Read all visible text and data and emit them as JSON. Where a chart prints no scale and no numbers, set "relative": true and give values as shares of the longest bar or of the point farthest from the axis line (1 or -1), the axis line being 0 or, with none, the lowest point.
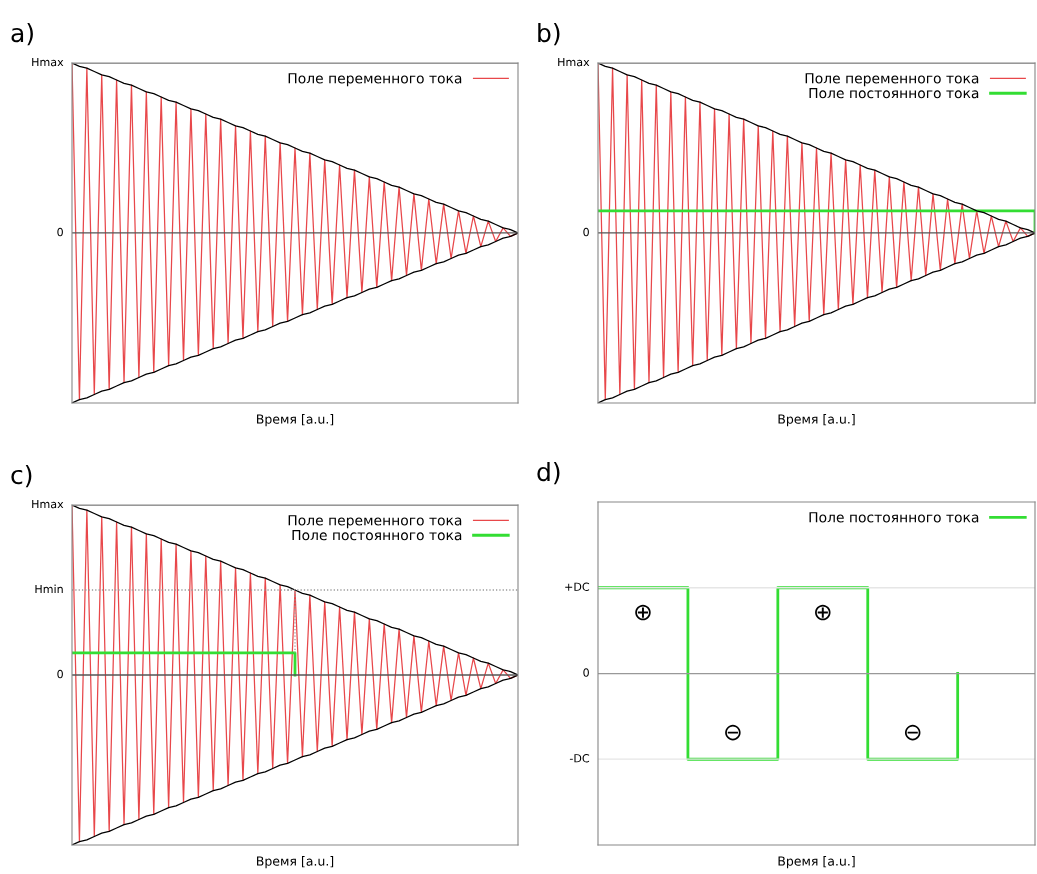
{
  "chart_data": [
    {
      "type": "line",
      "title": "a)",
      "xlabel": "Время [a.u.]",
      "relative": true,
      "legend": "top right",
      "categories": [
        null,
        null,
        null,
        null,
        null,
        null,
        null,
        null,
        null,
        null,
        null,
        null,
        null,
        null,
        null,
        null,
        null,
        null,
        null,
        null,
        null,
        null,
        null,
        null,
        null,
        null,
        null,
        null,
        null,
        null,
        null,
        null,
        null,
        null,
        null,
        null,
        null,
        null,
        null,
        null,
        null,
        null,
        null,
        null,
        null,
        null,
        null,
        null,
        null,
        null,
        null,
        null,
        null,
        null,
        null,
        null,
        null,
        null,
        null,
        null,
        null
      ],
      "ref_lines": [
        {
          "axis": "y",
          "value": 1,
          "label": "Hmax",
          "color": "#888888"
        },
        {
          "axis": "y",
          "value": 0,
          "label": "0",
          "color": "#555555"
        }
      ],
      "series": [
        {
          "name": "Поле переменного тока",
          "color": "#e8474a",
          "values": [
            1.0,
            -0.98,
            0.97,
            -0.95,
            0.93,
            -0.92,
            0.9,
            -0.88,
            0.87,
            -0.85,
            0.83,
            -0.82,
            0.8,
            -0.78,
            0.77,
            -0.75,
            0.73,
            -0.72,
            0.7,
            -0.68,
            0.67,
            -0.65,
            0.63,
            -0.62,
            0.6,
            -0.58,
            0.57,
            -0.55,
            0.53,
            -0.52,
            0.5,
            -0.48,
            0.47,
            -0.45,
            0.43,
            -0.42,
            0.4,
            -0.38,
            0.37,
            -0.35,
            0.33,
            -0.32,
            0.3,
            -0.28,
            0.27,
            -0.25,
            0.23,
            -0.22,
            0.2,
            -0.18,
            0.17,
            -0.15,
            0.13,
            -0.12,
            0.1,
            -0.08,
            0.07,
            -0.05,
            0.03,
            -0.02,
            0
          ]
        },
        {
          "color": "#000000",
          "values": [
            1.0,
            0.98,
            0.97,
            0.95,
            0.93,
            0.92,
            0.9,
            0.88,
            0.87,
            0.85,
            0.83,
            0.82,
            0.8,
            0.78,
            0.77,
            0.75,
            0.73,
            0.72,
            0.7,
            0.68,
            0.67,
            0.65,
            0.63,
            0.62,
            0.6,
            0.58,
            0.57,
            0.55,
            0.53,
            0.52,
            0.5,
            0.48,
            0.47,
            0.45,
            0.43,
            0.42,
            0.4,
            0.38,
            0.37,
            0.35,
            0.33,
            0.32,
            0.3,
            0.28,
            0.27,
            0.25,
            0.23,
            0.22,
            0.2,
            0.18,
            0.17,
            0.15,
            0.13,
            0.12,
            0.1,
            0.08,
            0.07,
            0.05,
            0.03,
            0.02,
            0
          ]
        },
        {
          "color": "#000000",
          "values": [
            -1.0,
            -0.98,
            -0.97,
            -0.95,
            -0.93,
            -0.92,
            -0.9,
            -0.88,
            -0.87,
            -0.85,
            -0.83,
            -0.82,
            -0.8,
            -0.78,
            -0.77,
            -0.75,
            -0.73,
            -0.72,
            -0.7,
            -0.68,
            -0.67,
            -0.65,
            -0.63,
            -0.62,
            -0.6,
            -0.58,
            -0.57,
            -0.55,
            -0.53,
            -0.52,
            -0.5,
            -0.48,
            -0.47,
            -0.45,
            -0.43,
            -0.42,
            -0.4,
            -0.38,
            -0.37,
            -0.35,
            -0.33,
            -0.32,
            -0.3,
            -0.28,
            -0.27,
            -0.25,
            -0.23,
            -0.22,
            -0.2,
            -0.18,
            -0.17,
            -0.15,
            -0.13,
            -0.12,
            -0.1,
            -0.08,
            -0.07,
            -0.05,
            -0.03,
            -0.02,
            0
          ]
        }
      ]
    },
    {
      "type": "line",
      "title": "b)",
      "xlabel": "Время [a.u.]",
      "relative": true,
      "legend": "top right",
      "categories": [
        null,
        null,
        null,
        null,
        null,
        null,
        null,
        null,
        null,
        null,
        null,
        null,
        null,
        null,
        null,
        null,
        null,
        null,
        null,
        null,
        null,
        null,
        null,
        null,
        null,
        null,
        null,
        null,
        null,
        null,
        null,
        null,
        null,
        null,
        null,
        null,
        null,
        null,
        null,
        null,
        null,
        null,
        null,
        null,
        null,
        null,
        null,
        null,
        null,
        null,
        null,
        null,
        null,
        null,
        null,
        null,
        null,
        null,
        null,
        null,
        null
      ],
      "ref_lines": [
        {
          "axis": "y",
          "value": 1,
          "label": "Hmax",
          "color": "#888888"
        },
        {
          "axis": "y",
          "value": 0,
          "label": "0",
          "color": "#555555"
        }
      ],
      "series": [
        {
          "name": "Поле переменного тока",
          "color": "#e8474a",
          "values": [
            1.0,
            -0.98,
            0.97,
            -0.95,
            0.93,
            -0.92,
            0.9,
            -0.88,
            0.87,
            -0.85,
            0.83,
            -0.82,
            0.8,
            -0.78,
            0.77,
            -0.75,
            0.73,
            -0.72,
            0.7,
            -0.68,
            0.67,
            -0.65,
            0.63,
            -0.62,
            0.6,
            -0.58,
            0.57,
            -0.55,
            0.53,
            -0.52,
            0.5,
            -0.48,
            0.47,
            -0.45,
            0.43,
            -0.42,
            0.4,
            -0.38,
            0.37,
            -0.35,
            0.33,
            -0.32,
            0.3,
            -0.28,
            0.27,
            -0.25,
            0.23,
            -0.22,
            0.2,
            -0.18,
            0.17,
            -0.15,
            0.13,
            -0.12,
            0.1,
            -0.08,
            0.07,
            -0.05,
            0.03,
            -0.02,
            0
          ]
        },
        {
          "name": "Поле постоянного тока",
          "type": "step",
          "color": "#33dd33",
          "values": [
            0.13,
            0.13,
            0.13,
            0.13,
            0.13,
            0.13,
            0.13,
            0.13,
            0.13,
            0.13,
            0.13,
            0.13,
            0.13,
            0.13,
            0.13,
            0.13,
            0.13,
            0.13,
            0.13,
            0.13,
            0.13,
            0.13,
            0.13,
            0.13,
            0.13,
            0.13,
            0.13,
            0.13,
            0.13,
            0.13,
            0.13,
            0.13,
            0.13,
            0.13,
            0.13,
            0.13,
            0.13,
            0.13,
            0.13,
            0.13,
            0.13,
            0.13,
            0.13,
            0.13,
            0.13,
            0.13,
            0.13,
            0.13,
            0.13,
            0.13,
            0.13,
            0.13,
            0.13,
            0.13,
            0.13,
            0.13,
            0.13,
            0.13,
            0.13,
            0.13,
            0
          ]
        },
        {
          "color": "#000000",
          "values": [
            1.0,
            0.98,
            0.97,
            0.95,
            0.93,
            0.92,
            0.9,
            0.88,
            0.87,
            0.85,
            0.83,
            0.82,
            0.8,
            0.78,
            0.77,
            0.75,
            0.73,
            0.72,
            0.7,
            0.68,
            0.67,
            0.65,
            0.63,
            0.62,
            0.6,
            0.58,
            0.57,
            0.55,
            0.53,
            0.52,
            0.5,
            0.48,
            0.47,
            0.45,
            0.43,
            0.42,
            0.4,
            0.38,
            0.37,
            0.35,
            0.33,
            0.32,
            0.3,
            0.28,
            0.27,
            0.25,
            0.23,
            0.22,
            0.2,
            0.18,
            0.17,
            0.15,
            0.13,
            0.12,
            0.1,
            0.08,
            0.07,
            0.05,
            0.03,
            0.02,
            0
          ]
        },
        {
          "color": "#000000",
          "values": [
            -1.0,
            -0.98,
            -0.97,
            -0.95,
            -0.93,
            -0.92,
            -0.9,
            -0.88,
            -0.87,
            -0.85,
            -0.83,
            -0.82,
            -0.8,
            -0.78,
            -0.77,
            -0.75,
            -0.73,
            -0.72,
            -0.7,
            -0.68,
            -0.67,
            -0.65,
            -0.63,
            -0.62,
            -0.6,
            -0.58,
            -0.57,
            -0.55,
            -0.53,
            -0.52,
            -0.5,
            -0.48,
            -0.47,
            -0.45,
            -0.43,
            -0.42,
            -0.4,
            -0.38,
            -0.37,
            -0.35,
            -0.33,
            -0.32,
            -0.3,
            -0.28,
            -0.27,
            -0.25,
            -0.23,
            -0.22,
            -0.2,
            -0.18,
            -0.17,
            -0.15,
            -0.13,
            -0.12,
            -0.1,
            -0.08,
            -0.07,
            -0.05,
            -0.03,
            -0.02,
            0
          ]
        }
      ]
    },
    {
      "type": "line",
      "title": "c)",
      "xlabel": "Время [a.u.]",
      "relative": true,
      "legend": "top right",
      "categories": [
        null,
        null,
        null,
        null,
        null,
        null,
        null,
        null,
        null,
        null,
        null,
        null,
        null,
        null,
        null,
        null,
        null,
        null,
        null,
        null,
        null,
        null,
        null,
        null,
        null,
        null,
        null,
        null,
        null,
        null,
        null,
        null,
        null,
        null,
        null,
        null,
        null,
        null,
        null,
        null,
        null,
        null,
        null,
        null,
        null,
        null,
        null,
        null,
        null,
        null,
        null,
        null,
        null,
        null,
        null,
        null,
        null,
        null,
        null,
        null,
        null
      ],
      "ref_lines": [
        {
          "axis": "y",
          "value": 1,
          "label": "Hmax",
          "color": "#888888"
        },
        {
          "axis": "y",
          "value": 0.5,
          "label": "Hmin",
          "color": "#999999",
          "line_style": "dotted"
        },
        {
          "axis": "y",
          "value": 0,
          "label": "0",
          "color": "#555555"
        }
      ],
      "series": [
        {
          "name": "Поле переменного тока",
          "color": "#e8474a",
          "values": [
            1.0,
            -0.98,
            0.97,
            -0.95,
            0.93,
            -0.92,
            0.9,
            -0.88,
            0.87,
            -0.85,
            0.83,
            -0.82,
            0.8,
            -0.78,
            0.77,
            -0.75,
            0.73,
            -0.72,
            0.7,
            -0.68,
            0.67,
            -0.65,
            0.63,
            -0.62,
            0.6,
            -0.58,
            0.57,
            -0.55,
            0.53,
            -0.52,
            0.5,
            -0.48,
            0.47,
            -0.45,
            0.43,
            -0.42,
            0.4,
            -0.38,
            0.37,
            -0.35,
            0.33,
            -0.32,
            0.3,
            -0.28,
            0.27,
            -0.25,
            0.23,
            -0.22,
            0.2,
            -0.18,
            0.17,
            -0.15,
            0.13,
            -0.12,
            0.1,
            -0.08,
            0.07,
            -0.05,
            0.03,
            -0.02,
            0
          ]
        },
        {
          "name": "Поле постоянного тока",
          "type": "step",
          "color": "#33dd33",
          "values": [
            0.13,
            0.13,
            0.13,
            0.13,
            0.13,
            0.13,
            0.13,
            0.13,
            0.13,
            0.13,
            0.13,
            0.13,
            0.13,
            0.13,
            0.13,
            0.13,
            0.13,
            0.13,
            0.13,
            0.13,
            0.13,
            0.13,
            0.13,
            0.13,
            0.13,
            0.13,
            0.13,
            0.13,
            0.13,
            0.13,
            0,
            null,
            null,
            null,
            null,
            null,
            null,
            null,
            null,
            null,
            null,
            null,
            null,
            null,
            null,
            null,
            null,
            null,
            null,
            null,
            null,
            null,
            null,
            null,
            null,
            null,
            null,
            null,
            null,
            null,
            null
          ]
        },
        {
          "type": "step",
          "color": "#999999",
          "line_style": "dotted",
          "values": [
            null,
            null,
            null,
            null,
            null,
            null,
            null,
            null,
            null,
            null,
            null,
            null,
            null,
            null,
            null,
            null,
            null,
            null,
            null,
            null,
            null,
            null,
            null,
            null,
            null,
            null,
            null,
            null,
            null,
            0.5,
            0.13,
            null,
            null,
            null,
            null,
            null,
            null,
            null,
            null,
            null,
            null,
            null,
            null,
            null,
            null,
            null,
            null,
            null,
            null,
            null,
            null,
            null,
            null,
            null,
            null,
            null,
            null,
            null,
            null,
            null,
            null
          ]
        },
        {
          "color": "#000000",
          "values": [
            1.0,
            0.98,
            0.97,
            0.95,
            0.93,
            0.92,
            0.9,
            0.88,
            0.87,
            0.85,
            0.83,
            0.82,
            0.8,
            0.78,
            0.77,
            0.75,
            0.73,
            0.72,
            0.7,
            0.68,
            0.67,
            0.65,
            0.63,
            0.62,
            0.6,
            0.58,
            0.57,
            0.55,
            0.53,
            0.52,
            0.5,
            0.48,
            0.47,
            0.45,
            0.43,
            0.42,
            0.4,
            0.38,
            0.37,
            0.35,
            0.33,
            0.32,
            0.3,
            0.28,
            0.27,
            0.25,
            0.23,
            0.22,
            0.2,
            0.18,
            0.17,
            0.15,
            0.13,
            0.12,
            0.1,
            0.08,
            0.07,
            0.05,
            0.03,
            0.02,
            0
          ]
        },
        {
          "color": "#000000",
          "values": [
            -1.0,
            -0.98,
            -0.97,
            -0.95,
            -0.93,
            -0.92,
            -0.9,
            -0.88,
            -0.87,
            -0.85,
            -0.83,
            -0.82,
            -0.8,
            -0.78,
            -0.77,
            -0.75,
            -0.73,
            -0.72,
            -0.7,
            -0.68,
            -0.67,
            -0.65,
            -0.63,
            -0.62,
            -0.6,
            -0.58,
            -0.57,
            -0.55,
            -0.53,
            -0.52,
            -0.5,
            -0.48,
            -0.47,
            -0.45,
            -0.43,
            -0.42,
            -0.4,
            -0.38,
            -0.37,
            -0.35,
            -0.33,
            -0.32,
            -0.3,
            -0.28,
            -0.27,
            -0.25,
            -0.23,
            -0.22,
            -0.2,
            -0.18,
            -0.17,
            -0.15,
            -0.13,
            -0.12,
            -0.1,
            -0.08,
            -0.07,
            -0.05,
            -0.03,
            -0.02,
            0
          ]
        }
      ]
    },
    {
      "type": "step",
      "title": "d)",
      "xlabel": "Время [a.u.]",
      "relative": true,
      "legend": "top right",
      "categories": [
        null,
        null,
        null,
        null,
        null,
        null
      ],
      "ref_lines": [
        {
          "axis": "y",
          "value": 1,
          "label": "+DC",
          "color": "#e6e6e6"
        },
        {
          "axis": "y",
          "value": 0,
          "label": "0",
          "color": "#999999"
        },
        {
          "axis": "y",
          "value": -1,
          "label": "-DC",
          "color": "#e6e6e6"
        }
      ],
      "annotations": [
        "⊕",
        "⊖",
        "⊕",
        "⊖"
      ],
      "series": [
        {
          "name": "Поле постоянного тока",
          "color": "#33dd33",
          "values": [
            1,
            -1,
            1,
            -1,
            0,
            null
          ]
        }
      ]
    }
  ]
}
